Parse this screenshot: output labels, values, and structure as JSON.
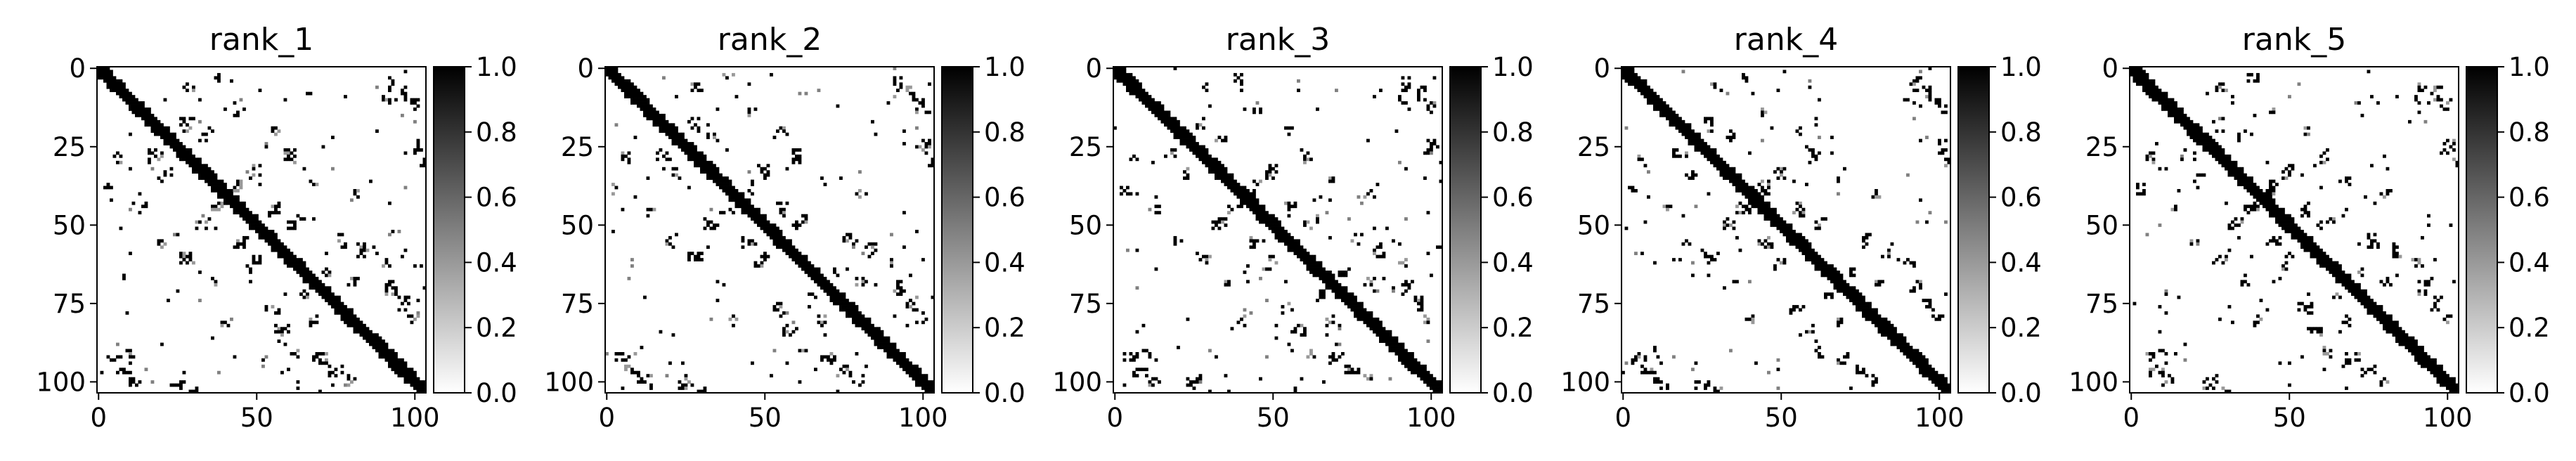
{
  "chart_data": {
    "type": "heatmap",
    "colormap": "Greys (0 = white, 1 = black)",
    "size": 104,
    "axis_ticks": [
      0,
      50,
      100
    ],
    "y_axis_ticks": [
      0,
      25,
      50,
      75,
      100
    ],
    "colorbar": {
      "range": [
        0.0,
        1.0
      ],
      "ticks": [
        "0.0",
        "0.2",
        "0.4",
        "0.6",
        "0.8",
        "1.0"
      ]
    },
    "structure": {
      "diagonal_band": {
        "half_width": 2,
        "value": 1
      },
      "contacts": [
        [
          5,
          92,
          2
        ],
        [
          8,
          96,
          2
        ],
        [
          10,
          90,
          1
        ],
        [
          12,
          99,
          2
        ],
        [
          3,
          38,
          1
        ],
        [
          6,
          28,
          1
        ],
        [
          18,
          27,
          2
        ],
        [
          22,
          33,
          1
        ],
        [
          20,
          55,
          1
        ],
        [
          28,
          60,
          2
        ],
        [
          25,
          100,
          2
        ],
        [
          30,
          103,
          1
        ],
        [
          33,
          49,
          2
        ],
        [
          38,
          44,
          2
        ],
        [
          36,
          68,
          1
        ],
        [
          45,
          55,
          2
        ],
        [
          50,
          60,
          1
        ],
        [
          55,
          76,
          2
        ],
        [
          58,
          83,
          2
        ],
        [
          62,
          90,
          1
        ],
        [
          68,
          80,
          1
        ],
        [
          70,
          92,
          2
        ],
        [
          75,
          96,
          2
        ],
        [
          80,
          99,
          1
        ],
        [
          40,
          80,
          1
        ],
        [
          48,
          63,
          1
        ],
        [
          14,
          44,
          1
        ],
        [
          65,
          72,
          1
        ]
      ]
    },
    "panels": [
      {
        "title": "rank_1",
        "seed": 11
      },
      {
        "title": "rank_2",
        "seed": 23
      },
      {
        "title": "rank_3",
        "seed": 37
      },
      {
        "title": "rank_4",
        "seed": 41
      },
      {
        "title": "rank_5",
        "seed": 53
      }
    ]
  }
}
